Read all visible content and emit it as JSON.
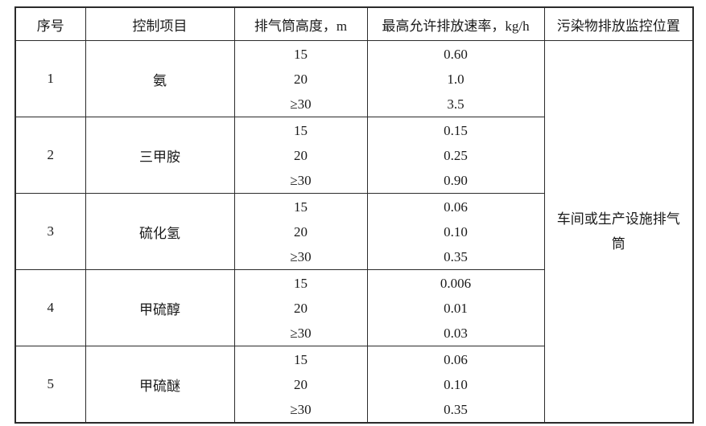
{
  "table": {
    "headers": {
      "serial": "序号",
      "control_item": "控制项目",
      "stack_height": "排气筒高度，m",
      "max_rate": "最高允许排放速率，kg/h",
      "monitoring_position": "污染物排放监控位置"
    },
    "monitoring_location": "车间或生产设施排气筒",
    "rows": [
      {
        "no": "1",
        "item": "氨",
        "heights": [
          "15",
          "20",
          "≥30"
        ],
        "rates": [
          "0.60",
          "1.0",
          "3.5"
        ]
      },
      {
        "no": "2",
        "item": "三甲胺",
        "heights": [
          "15",
          "20",
          "≥30"
        ],
        "rates": [
          "0.15",
          "0.25",
          "0.90"
        ]
      },
      {
        "no": "3",
        "item": "硫化氢",
        "heights": [
          "15",
          "20",
          "≥30"
        ],
        "rates": [
          "0.06",
          "0.10",
          "0.35"
        ]
      },
      {
        "no": "4",
        "item": "甲硫醇",
        "heights": [
          "15",
          "20",
          "≥30"
        ],
        "rates": [
          "0.006",
          "0.01",
          "0.03"
        ]
      },
      {
        "no": "5",
        "item": "甲硫醚",
        "heights": [
          "15",
          "20",
          "≥30"
        ],
        "rates": [
          "0.06",
          "0.10",
          "0.35"
        ]
      }
    ]
  }
}
